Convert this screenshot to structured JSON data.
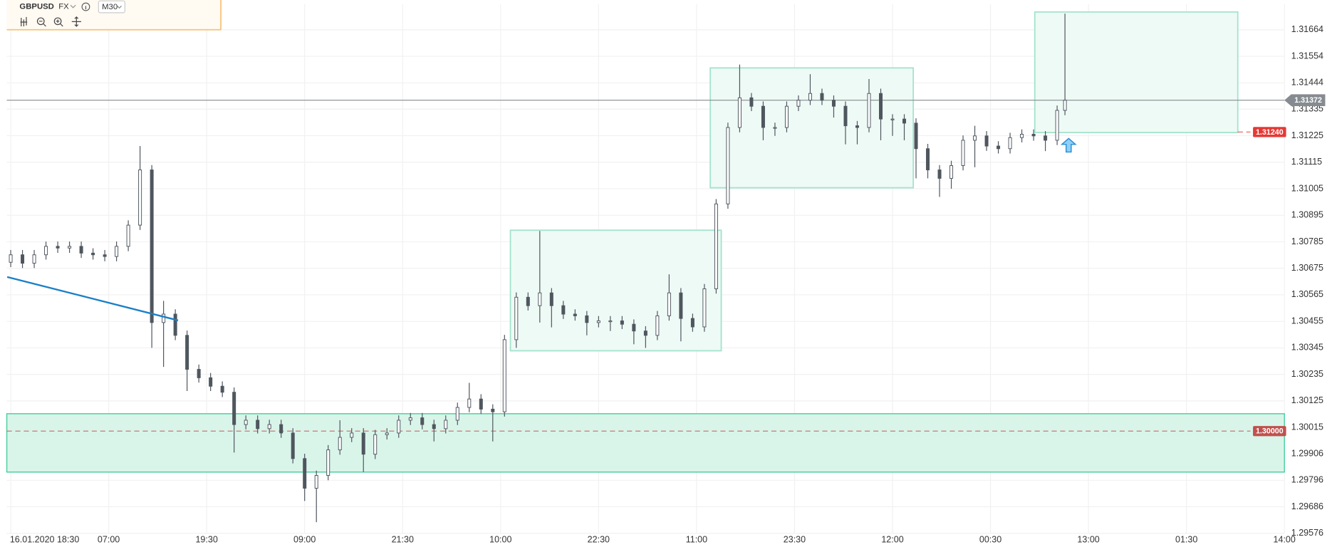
{
  "header": {
    "symbol": "GBPUSD",
    "market": "FX",
    "timeframe": "M30"
  },
  "chart_data": {
    "type": "candlestick",
    "up_color": "#ffffff",
    "down_color": "#4f565e",
    "wick_color": "#4f565e",
    "x": [
      0,
      3,
      6,
      9,
      12,
      15,
      18,
      21,
      24,
      27,
      30,
      33,
      36,
      39,
      42,
      45,
      48,
      51,
      54,
      57,
      60,
      63,
      66,
      69,
      72,
      75,
      78,
      81,
      84,
      87,
      90,
      93,
      96,
      99,
      102,
      105,
      108,
      111,
      114,
      117,
      120,
      123,
      126,
      129,
      132,
      135,
      138,
      141,
      144,
      147,
      150,
      153,
      156,
      159,
      162,
      165,
      168,
      171,
      174,
      177,
      180,
      183,
      186,
      189,
      192,
      195,
      198,
      201,
      204,
      207,
      210,
      213,
      216,
      219,
      222,
      225,
      228,
      231,
      234,
      237,
      240,
      243,
      246,
      249,
      252,
      255,
      258,
      261,
      264,
      267,
      269
    ],
    "open": [
      1.307,
      1.30731,
      1.30696,
      1.30731,
      1.30766,
      1.30759,
      1.30766,
      1.30738,
      1.30731,
      1.30724,
      1.30766,
      1.30854,
      1.31083,
      1.3045,
      1.30485,
      1.30397,
      1.30256,
      1.30221,
      1.30186,
      1.30161,
      1.30027,
      1.30045,
      1.3001,
      1.30027,
      1.29992,
      1.29886,
      1.29763,
      1.29816,
      1.29922,
      1.29974,
      1.29992,
      1.29904,
      1.29985,
      1.29992,
      1.30045,
      1.30055,
      1.30027,
      1.3001,
      1.30045,
      1.30098,
      1.30133,
      1.30091,
      1.3008,
      1.30379,
      1.30555,
      1.3052,
      1.30573,
      1.3052,
      1.30485,
      1.30478,
      1.3045,
      1.30457,
      1.30457,
      1.30443,
      1.30415,
      1.30397,
      1.30478,
      1.30573,
      1.30467,
      1.30432,
      1.3059,
      1.30942,
      1.31259,
      1.31382,
      1.31347,
      1.31259,
      1.31259,
      1.31347,
      1.31372,
      1.314,
      1.31372,
      1.31347,
      1.31266,
      1.31259,
      1.314,
      1.31294,
      1.31294,
      1.31277,
      1.31171,
      1.31083,
      1.31048,
      1.31101,
      1.31206,
      1.31224,
      1.31182,
      1.31171,
      1.31217,
      1.31231,
      1.31224,
      1.31206,
      1.3133
    ],
    "high": [
      1.30751,
      1.30751,
      1.30751,
      1.30786,
      1.30786,
      1.30786,
      1.30786,
      1.30758,
      1.30751,
      1.30786,
      1.30874,
      1.31182,
      1.31103,
      1.3054,
      1.30505,
      1.30417,
      1.30276,
      1.30241,
      1.30206,
      1.30181,
      1.30065,
      1.30065,
      1.30047,
      1.30047,
      1.30012,
      1.29906,
      1.29836,
      1.29942,
      1.30045,
      1.30012,
      1.30012,
      1.30005,
      1.30012,
      1.30065,
      1.30075,
      1.30075,
      1.30047,
      1.30065,
      1.30118,
      1.302,
      1.30153,
      1.30111,
      1.30399,
      1.30575,
      1.30575,
      1.3083,
      1.30593,
      1.3054,
      1.30505,
      1.30498,
      1.30477,
      1.30477,
      1.30477,
      1.30463,
      1.30435,
      1.30498,
      1.3065,
      1.30593,
      1.30487,
      1.3061,
      1.30962,
      1.31279,
      1.3152,
      1.31402,
      1.31367,
      1.31279,
      1.31367,
      1.31392,
      1.3148,
      1.3142,
      1.31392,
      1.31367,
      1.31286,
      1.3146,
      1.3142,
      1.31314,
      1.31314,
      1.31297,
      1.31191,
      1.31103,
      1.31121,
      1.31226,
      1.31266,
      1.31244,
      1.31202,
      1.31237,
      1.31251,
      1.31251,
      1.31244,
      1.3135,
      1.31731
    ],
    "low": [
      1.3068,
      1.30676,
      1.30676,
      1.30711,
      1.30739,
      1.30739,
      1.30718,
      1.30711,
      1.30704,
      1.30704,
      1.30746,
      1.30834,
      1.30345,
      1.30266,
      1.30377,
      1.30166,
      1.30201,
      1.30166,
      1.30141,
      1.29911,
      1.30007,
      1.2999,
      1.2999,
      1.29972,
      1.29866,
      1.2971,
      1.29622,
      1.29796,
      1.29902,
      1.29954,
      1.2983,
      1.29884,
      1.29965,
      1.29972,
      1.30025,
      1.30007,
      1.29957,
      1.2999,
      1.30025,
      1.30078,
      1.30071,
      1.29957,
      1.3006,
      1.30345,
      1.305,
      1.3045,
      1.3043,
      1.30465,
      1.30458,
      1.30397,
      1.3043,
      1.30415,
      1.30423,
      1.3036,
      1.30345,
      1.30377,
      1.30458,
      1.30372,
      1.30412,
      1.30412,
      1.3057,
      1.30922,
      1.31239,
      1.31327,
      1.31206,
      1.31224,
      1.31239,
      1.31327,
      1.31352,
      1.31352,
      1.313,
      1.31189,
      1.31189,
      1.31239,
      1.31206,
      1.31224,
      1.31206,
      1.31048,
      1.31048,
      1.30971,
      1.31005,
      1.31081,
      1.31094,
      1.31162,
      1.31151,
      1.31151,
      1.31197,
      1.31204,
      1.31161,
      1.31186,
      1.3131
    ],
    "close": [
      1.30731,
      1.30696,
      1.30731,
      1.30766,
      1.30759,
      1.30766,
      1.30738,
      1.30731,
      1.30724,
      1.30766,
      1.30854,
      1.31083,
      1.3045,
      1.30485,
      1.30397,
      1.30256,
      1.30221,
      1.30186,
      1.30161,
      1.30027,
      1.30045,
      1.3001,
      1.30027,
      1.29992,
      1.29886,
      1.29763,
      1.29816,
      1.29922,
      1.29974,
      1.29992,
      1.29904,
      1.29985,
      1.29992,
      1.30045,
      1.30055,
      1.30027,
      1.3001,
      1.30045,
      1.30098,
      1.30133,
      1.30091,
      1.3008,
      1.30379,
      1.30555,
      1.3052,
      1.30573,
      1.3052,
      1.30485,
      1.30478,
      1.3045,
      1.30457,
      1.30457,
      1.30443,
      1.30415,
      1.30397,
      1.30478,
      1.30573,
      1.30467,
      1.30432,
      1.3059,
      1.30942,
      1.31259,
      1.31382,
      1.31347,
      1.31259,
      1.31259,
      1.31347,
      1.31372,
      1.314,
      1.31372,
      1.31347,
      1.31266,
      1.31259,
      1.314,
      1.31294,
      1.31294,
      1.31277,
      1.31171,
      1.31083,
      1.31048,
      1.31101,
      1.31206,
      1.31224,
      1.31182,
      1.31171,
      1.31217,
      1.31231,
      1.31224,
      1.31206,
      1.3133,
      1.31372
    ],
    "xlim": [
      -1,
      325
    ],
    "xticks": [
      {
        "value": 0,
        "label": "16.01.2020 18:30"
      },
      {
        "value": 25,
        "label": "07:00"
      },
      {
        "value": 50,
        "label": "19:30"
      },
      {
        "value": 75,
        "label": "09:00"
      },
      {
        "value": 100,
        "label": "21:30"
      },
      {
        "value": 125,
        "label": "10:00"
      },
      {
        "value": 150,
        "label": "22:30"
      },
      {
        "value": 175,
        "label": "11:00"
      },
      {
        "value": 200,
        "label": "23:30"
      },
      {
        "value": 225,
        "label": "12:00"
      },
      {
        "value": 250,
        "label": "00:30"
      },
      {
        "value": 275,
        "label": "13:00"
      },
      {
        "value": 300,
        "label": "01:30"
      },
      {
        "value": 325,
        "label": "14:00"
      }
    ],
    "ylim": [
      1.29576,
      1.3177
    ],
    "yticks": [
      1.31664,
      1.31554,
      1.31444,
      1.31335,
      1.31225,
      1.31115,
      1.31005,
      1.30895,
      1.30785,
      1.30675,
      1.30565,
      1.30455,
      1.30345,
      1.30235,
      1.30125,
      1.30015,
      1.29906,
      1.29796,
      1.29686,
      1.29576
    ],
    "grid": true,
    "zone": {
      "low": 1.2983,
      "high": 1.30072,
      "fill": "#d9f5ea",
      "stroke": "#49cf9f"
    },
    "boxes": [
      {
        "x0": 127.5,
        "x1": 181.3,
        "low": 1.30333,
        "high": 1.30833
      },
      {
        "x0": 178.5,
        "x1": 230.3,
        "low": 1.31009,
        "high": 1.31506
      },
      {
        "x0": 261.3,
        "x1": 313.1,
        "low": 1.31238,
        "high": 1.31738
      }
    ],
    "box_fill": "#eefaf5",
    "box_stroke": "#a3e3cd",
    "trend_line": {
      "x": [
        -0.9,
        42.7
      ],
      "y": [
        1.30639,
        1.30459
      ],
      "color": "#1a7fc8"
    },
    "price_lines": [
      {
        "price": 1.31372,
        "color": "#868b91",
        "dashed": false
      },
      {
        "price": {
          "value": 1.3124,
          "label": "1.31240"
        },
        "color": "#e53935",
        "dashed": true,
        "x0": 313.1
      },
      {
        "price": {
          "value": 1.3,
          "label": "1.30000"
        },
        "color": "#c0504d",
        "dashed": true
      }
    ]
  }
}
